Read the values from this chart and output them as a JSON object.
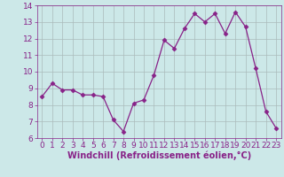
{
  "x": [
    0,
    1,
    2,
    3,
    4,
    5,
    6,
    7,
    8,
    9,
    10,
    11,
    12,
    13,
    14,
    15,
    16,
    17,
    18,
    19,
    20,
    21,
    22,
    23
  ],
  "y": [
    8.5,
    9.3,
    8.9,
    8.9,
    8.6,
    8.6,
    8.5,
    7.1,
    6.4,
    8.1,
    8.3,
    9.8,
    11.9,
    11.4,
    12.6,
    13.5,
    13.0,
    13.5,
    12.3,
    13.6,
    12.7,
    10.2,
    7.6,
    6.6
  ],
  "line_color": "#882288",
  "marker": "D",
  "marker_size": 2.5,
  "bg_color": "#cce8e8",
  "grid_color": "#aabbbb",
  "xlabel": "Windchill (Refroidissement éolien,°C)",
  "xlabel_color": "#882288",
  "xlabel_fontsize": 7,
  "tick_fontsize": 6.5,
  "ylim": [
    6,
    14
  ],
  "xlim": [
    -0.5,
    23.5
  ],
  "yticks": [
    6,
    7,
    8,
    9,
    10,
    11,
    12,
    13,
    14
  ],
  "xticks": [
    0,
    1,
    2,
    3,
    4,
    5,
    6,
    7,
    8,
    9,
    10,
    11,
    12,
    13,
    14,
    15,
    16,
    17,
    18,
    19,
    20,
    21,
    22,
    23
  ]
}
